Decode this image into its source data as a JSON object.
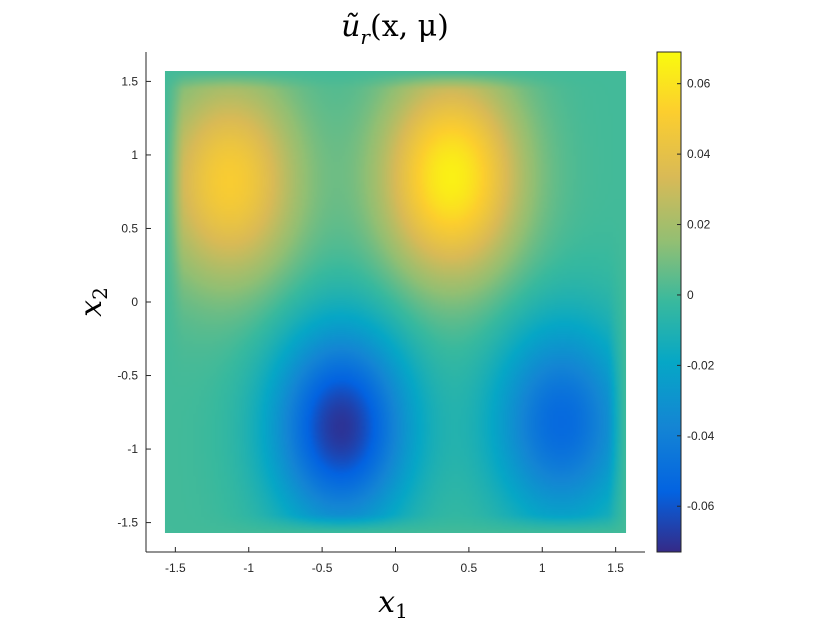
{
  "chart_data": {
    "type": "heatmap",
    "title": "ũ",
    "title_sub": "r",
    "title_args": "(x, μ)",
    "xlabel": "x",
    "xlabel_sub": "1",
    "ylabel": "x",
    "ylabel_sub": "2",
    "xlim": [
      -1.7,
      1.7
    ],
    "ylim": [
      -1.7,
      1.7
    ],
    "data_extent": {
      "x": [
        -1.5708,
        1.5708
      ],
      "y": [
        -1.5708,
        1.5708
      ]
    },
    "xticks": [
      -1.5,
      -1,
      -0.5,
      0,
      0.5,
      1,
      1.5
    ],
    "xtick_labels": [
      "-1.5",
      "-1",
      "-0.5",
      "0",
      "0.5",
      "1",
      "1.5"
    ],
    "yticks": [
      1.5,
      1,
      0.5,
      0,
      -0.5,
      -1,
      -1.5
    ],
    "ytick_labels": [
      "1.5",
      "1",
      "0.5",
      "0",
      "-0.5",
      "-1",
      "-1.5"
    ],
    "colormap": "parula",
    "clim": [
      -0.073,
      0.069
    ],
    "colorbar": {
      "ticks": [
        0.06,
        0.04,
        0.02,
        0,
        -0.02,
        -0.04,
        -0.06
      ],
      "tick_labels": [
        "0.06",
        "0.04",
        "0.02",
        "0",
        "-0.02",
        "-0.04",
        "-0.06"
      ]
    },
    "features": [
      {
        "kind": "max",
        "x": -1.13,
        "y": 0.82,
        "value": 0.05
      },
      {
        "kind": "max",
        "x": 0.38,
        "y": 0.85,
        "value": 0.065
      },
      {
        "kind": "min",
        "x": -0.37,
        "y": -0.85,
        "value": -0.07
      },
      {
        "kind": "min",
        "x": 1.13,
        "y": -0.82,
        "value": -0.052
      }
    ]
  }
}
